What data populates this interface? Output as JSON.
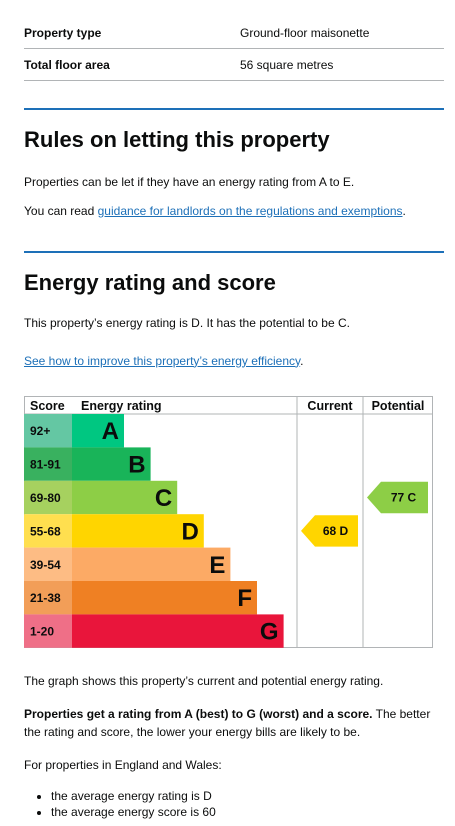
{
  "summary": {
    "rows": [
      {
        "key": "Property type",
        "value": "Ground-floor maisonette"
      },
      {
        "key": "Total floor area",
        "value": "56 square metres"
      }
    ]
  },
  "letting": {
    "heading": "Rules on letting this property",
    "para1": "Properties can be let if they have an energy rating from A to E.",
    "para2_prefix": "You can read ",
    "para2_link": "guidance for landlords on the regulations and exemptions",
    "para2_suffix": "."
  },
  "energy": {
    "heading": "Energy rating and score",
    "para1": "This property’s energy rating is D. It has the potential to be C.",
    "improve_link": "See how to improve this property’s energy efficiency",
    "improve_suffix": ".",
    "graph_caption": "The graph shows this property’s current and potential energy rating.",
    "bold_lead": "Properties get a rating from A (best) to G (worst) and a score.",
    "bold_tail": " The better the rating and score, the lower your energy bills are likely to be.",
    "england_intro": "For properties in England and Wales:",
    "bullets": [
      "the average energy rating is D",
      "the average energy score is 60"
    ]
  },
  "chart_data": {
    "type": "table",
    "headers": {
      "score": "Score",
      "rating": "Energy rating",
      "current": "Current",
      "potential": "Potential"
    },
    "bands": [
      {
        "range": "92+",
        "letter": "A",
        "color": "#008054",
        "label_color": "#008054"
      },
      {
        "range": "81-91",
        "letter": "B",
        "color": "#19b459"
      },
      {
        "range": "69-80",
        "letter": "C",
        "color": "#8dce46"
      },
      {
        "range": "55-68",
        "letter": "D",
        "color": "#ffd500"
      },
      {
        "range": "39-54",
        "letter": "E",
        "color": "#fcaa65"
      },
      {
        "range": "21-38",
        "letter": "F",
        "color": "#ef8023"
      },
      {
        "range": "1-20",
        "letter": "G",
        "color": "#e9153b"
      }
    ],
    "current": {
      "score": 68,
      "letter": "D",
      "label": "68 D",
      "band_index": 3
    },
    "potential": {
      "score": 77,
      "letter": "C",
      "label": "77 C",
      "band_index": 2
    }
  }
}
